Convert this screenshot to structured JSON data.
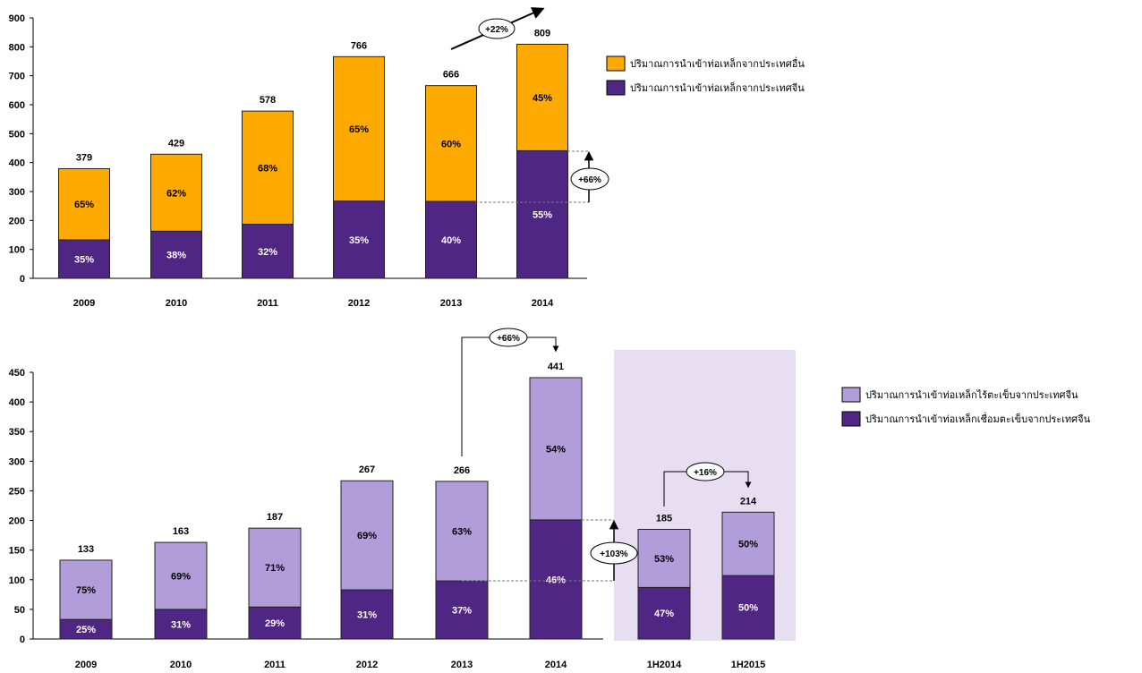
{
  "colors": {
    "orange": "#FFAA00",
    "purple_dark": "#4F2683",
    "purple_light": "#B29DDB",
    "highlight_bg": "#E8DEF2"
  },
  "chart_data": [
    {
      "type": "bar",
      "stacked": true,
      "categories": [
        "2009",
        "2010",
        "2011",
        "2012",
        "2013",
        "2014"
      ],
      "totals": [
        "379",
        "429",
        "578",
        "766",
        "666",
        "809"
      ],
      "series": [
        {
          "name": "ปริมาณการนำเข้าท่อเหล็กจากประเทศจีน",
          "color": "#4F2683",
          "values": [
            133,
            163,
            187,
            267,
            266,
            441
          ],
          "labels": [
            "35%",
            "38%",
            "32%",
            "35%",
            "40%",
            "55%"
          ]
        },
        {
          "name": "ปริมาณการนำเข้าท่อเหล็กจากประเทศอื่น",
          "color": "#FFAA00",
          "values": [
            246,
            266,
            391,
            499,
            400,
            368
          ],
          "labels": [
            "65%",
            "62%",
            "68%",
            "65%",
            "60%",
            "45%"
          ]
        }
      ],
      "yticks": [
        "0",
        "100",
        "200",
        "300",
        "400",
        "500",
        "600",
        "700",
        "800",
        "900"
      ],
      "ylim": [
        0,
        900
      ],
      "legend_order": [
        1,
        0
      ],
      "annotations": [
        "+22%",
        "+66%"
      ]
    },
    {
      "type": "bar",
      "stacked": true,
      "categories": [
        "2009",
        "2010",
        "2011",
        "2012",
        "2013",
        "2014",
        "1H2014",
        "1H2015"
      ],
      "totals": [
        "133",
        "163",
        "187",
        "267",
        "266",
        "441",
        "185",
        "214"
      ],
      "series": [
        {
          "name": "ปริมาณการนำเข้าท่อเหล็กเชื่อมตะเข็บจากประเทศจีน",
          "color": "#4F2683",
          "values": [
            33,
            50,
            54,
            83,
            98,
            201,
            87,
            107
          ],
          "labels": [
            "25%",
            "31%",
            "29%",
            "31%",
            "37%",
            "46%",
            "47%",
            "50%"
          ]
        },
        {
          "name": "ปริมาณการนำเข้าท่อเหล็กไร้ตะเข็บจากประเทศจีน",
          "color": "#B29DDB",
          "values": [
            100,
            113,
            133,
            184,
            168,
            240,
            98,
            107
          ],
          "labels": [
            "75%",
            "69%",
            "71%",
            "69%",
            "63%",
            "54%",
            "53%",
            "50%"
          ]
        }
      ],
      "yticks": [
        "0",
        "50",
        "100",
        "150",
        "200",
        "250",
        "300",
        "350",
        "400",
        "450"
      ],
      "ylim": [
        0,
        450
      ],
      "legend_order": [
        1,
        0
      ],
      "annotations": [
        "+66%",
        "+103%",
        "+16%"
      ]
    }
  ]
}
